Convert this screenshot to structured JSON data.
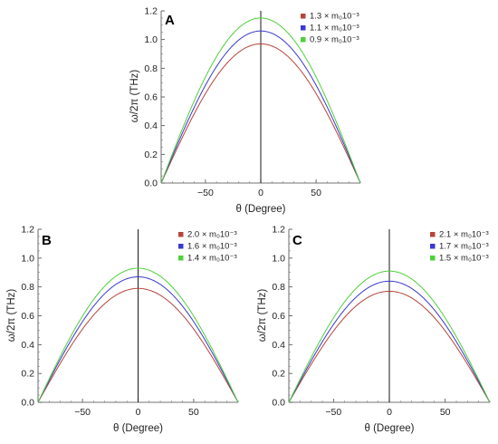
{
  "chart_data": [
    {
      "type": "line",
      "panel_label": "A",
      "xlabel": "θ (Degree)",
      "ylabel": "ω/2π (THz)",
      "xlim": [
        -90,
        90
      ],
      "ylim": [
        0,
        1.2
      ],
      "xticks": [
        -50,
        0,
        50
      ],
      "yticks": [
        0.0,
        0.2,
        0.4,
        0.6,
        0.8,
        1.0,
        1.2
      ],
      "legend_position": "top-right",
      "grid": false,
      "series": [
        {
          "name": "1.3 × m₀10⁻³",
          "color": "#b5453a",
          "peak": 0.97
        },
        {
          "name": "1.1 × m₀10⁻³",
          "color": "#3a3acc",
          "peak": 1.06
        },
        {
          "name": "0.9 × m₀10⁻³",
          "color": "#4fd03a",
          "peak": 1.15
        }
      ]
    },
    {
      "type": "line",
      "panel_label": "B",
      "xlabel": "θ (Degree)",
      "ylabel": "ω/2π (THz)",
      "xlim": [
        -90,
        90
      ],
      "ylim": [
        0,
        1.2
      ],
      "xticks": [
        -50,
        0,
        50
      ],
      "yticks": [
        0.0,
        0.2,
        0.4,
        0.6,
        0.8,
        1.0,
        1.2
      ],
      "legend_position": "top-right",
      "grid": false,
      "series": [
        {
          "name": "2.0 × m₀10⁻³",
          "color": "#b5453a",
          "peak": 0.79
        },
        {
          "name": "1.6 × m₀10⁻³",
          "color": "#3a3acc",
          "peak": 0.87
        },
        {
          "name": "1.4 × m₀10⁻³",
          "color": "#4fd03a",
          "peak": 0.93
        }
      ]
    },
    {
      "type": "line",
      "panel_label": "C",
      "xlabel": "θ (Degree)",
      "ylabel": "ω/2π (THz)",
      "xlim": [
        -90,
        90
      ],
      "ylim": [
        0,
        1.2
      ],
      "xticks": [
        -50,
        0,
        50
      ],
      "yticks": [
        0.0,
        0.2,
        0.4,
        0.6,
        0.8,
        1.0,
        1.2
      ],
      "legend_position": "top-right",
      "grid": false,
      "series": [
        {
          "name": "2.1 × m₀10⁻³",
          "color": "#b5453a",
          "peak": 0.77
        },
        {
          "name": "1.7 × m₀10⁻³",
          "color": "#3a3acc",
          "peak": 0.84
        },
        {
          "name": "1.5 × m₀10⁻³",
          "color": "#4fd03a",
          "peak": 0.91
        }
      ]
    }
  ]
}
